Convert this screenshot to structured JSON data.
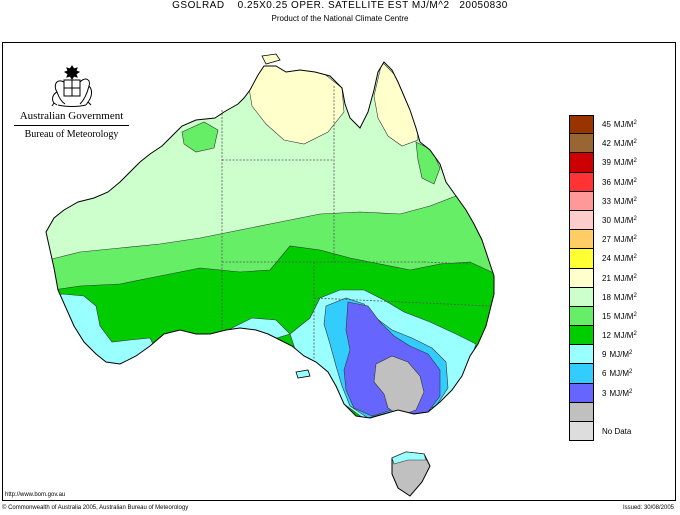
{
  "header": {
    "title": "GSOLRAD    0.25X0.25 OPER. SATELLITE EST MJ/M^2   20050830",
    "subtitle": "Product of the National Climate Centre"
  },
  "logo": {
    "government": "Australian Government",
    "agency": "Bureau of Meteorology",
    "icon": "commonwealth-coat-of-arms-icon"
  },
  "legend": [
    {
      "value": "45",
      "unit": "MJ/M",
      "exp": "2",
      "color": "#993300"
    },
    {
      "value": "42",
      "unit": "MJ/M",
      "exp": "2",
      "color": "#996633"
    },
    {
      "value": "39",
      "unit": "MJ/M",
      "exp": "2",
      "color": "#cc0000"
    },
    {
      "value": "36",
      "unit": "MJ/M",
      "exp": "2",
      "color": "#ff3333"
    },
    {
      "value": "33",
      "unit": "MJ/M",
      "exp": "2",
      "color": "#ff9999"
    },
    {
      "value": "30",
      "unit": "MJ/M",
      "exp": "2",
      "color": "#ffcccc"
    },
    {
      "value": "27",
      "unit": "MJ/M",
      "exp": "2",
      "color": "#ffcc66"
    },
    {
      "value": "24",
      "unit": "MJ/M",
      "exp": "2",
      "color": "#ffff33"
    },
    {
      "value": "21",
      "unit": "MJ/M",
      "exp": "2",
      "color": "#ffffcc"
    },
    {
      "value": "18",
      "unit": "MJ/M",
      "exp": "2",
      "color": "#ccffcc"
    },
    {
      "value": "15",
      "unit": "MJ/M",
      "exp": "2",
      "color": "#66ee66"
    },
    {
      "value": "12",
      "unit": "MJ/M",
      "exp": "2",
      "color": "#00cc00"
    },
    {
      "value": "9",
      "unit": "MJ/M",
      "exp": "2",
      "color": "#99ffff"
    },
    {
      "value": "6",
      "unit": "MJ/M",
      "exp": "2",
      "color": "#33ccff"
    },
    {
      "value": "3",
      "unit": "MJ/M",
      "exp": "2",
      "color": "#6666ff"
    },
    {
      "value": "",
      "unit": "",
      "exp": "",
      "color": "#c0c0c0"
    },
    {
      "value": "No Data",
      "unit": "",
      "exp": "",
      "color": "#dddddd"
    }
  ],
  "footer": {
    "url": "http://www.bom.gov.au",
    "copyright": "© Commonwealth of Australia 2005, Australian Bureau of Meteorology",
    "issued": "Issued: 30/08/2005"
  },
  "colors": {
    "band_21": "#ffffcc",
    "band_18": "#ccffcc",
    "band_15": "#66ee66",
    "band_12": "#00cc00",
    "band_9": "#99ffff",
    "band_6": "#33ccff",
    "band_3": "#6666ff",
    "band_0": "#c0c0c0",
    "border": "#000000"
  }
}
